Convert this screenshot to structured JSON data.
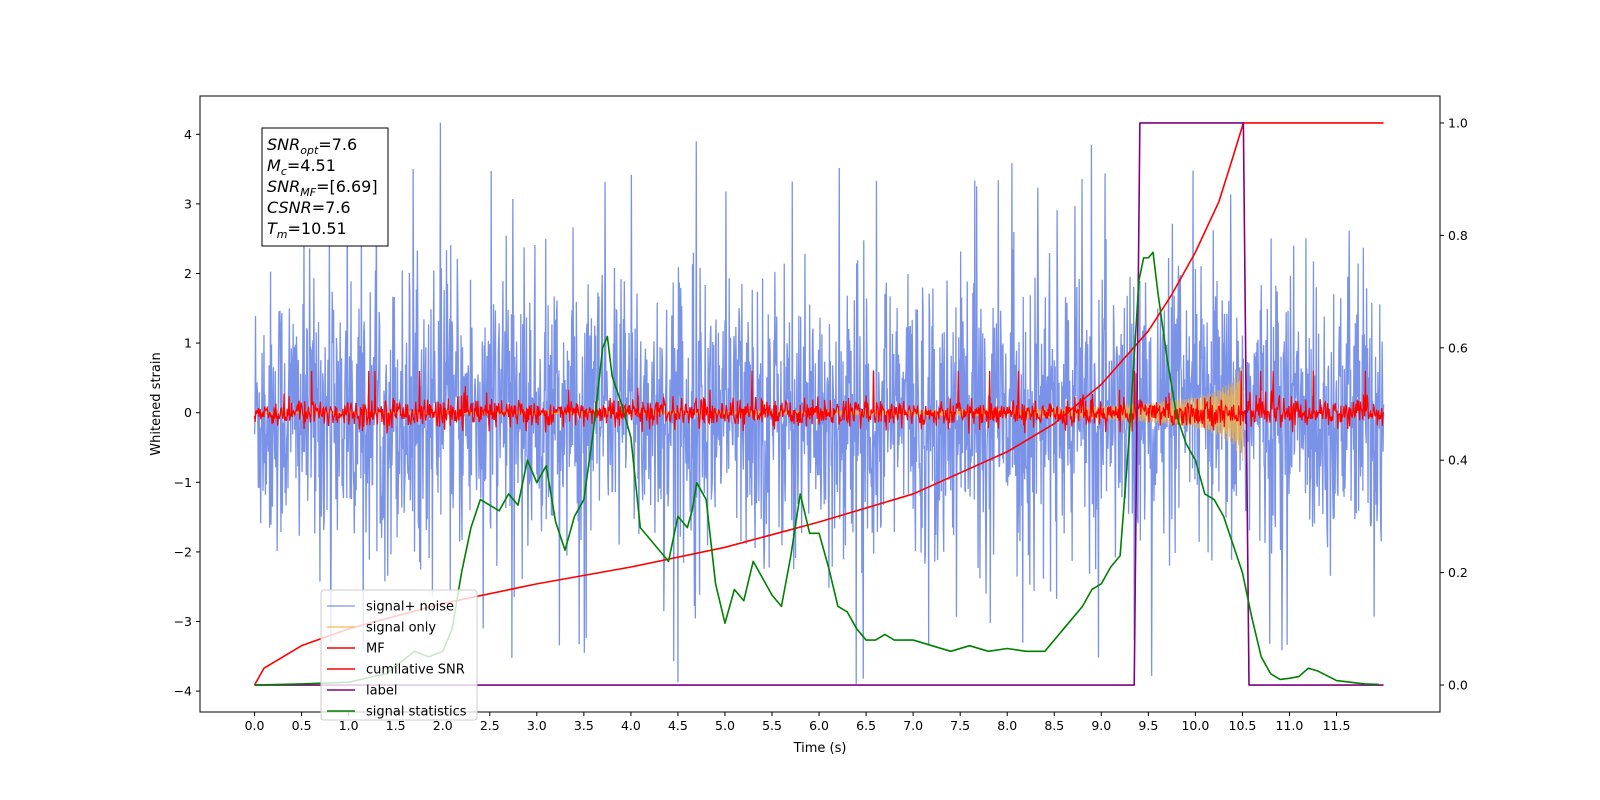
{
  "chart_data": {
    "type": "line",
    "title": "",
    "xlabel": "Time (s)",
    "ylabel": "Whitened strain",
    "y2label": "",
    "xlim": [
      -0.58,
      12.6
    ],
    "ylim": [
      -4.3,
      4.55
    ],
    "y2lim": [
      -0.048,
      1.048
    ],
    "x_ticks": [
      0.0,
      0.5,
      1.0,
      1.5,
      2.0,
      2.5,
      3.0,
      3.5,
      4.0,
      4.5,
      5.0,
      5.5,
      6.0,
      6.5,
      7.0,
      7.5,
      8.0,
      8.5,
      9.0,
      9.5,
      10.0,
      10.5,
      11.0,
      11.5
    ],
    "x_tick_labels": [
      "0.0",
      "0.5",
      "1.0",
      "1.5",
      "2.0",
      "2.5",
      "3.0",
      "3.5",
      "4.0",
      "4.5",
      "5.0",
      "5.5",
      "6.0",
      "6.5",
      "7.0",
      "7.5",
      "8.0",
      "8.5",
      "9.0",
      "9.5",
      "10.0",
      "10.5",
      "11.0",
      "11.5"
    ],
    "y_ticks": [
      -4,
      -3,
      -2,
      -1,
      0,
      1,
      2,
      3,
      4
    ],
    "y_tick_labels": [
      "−4",
      "−3",
      "−2",
      "−1",
      "0",
      "1",
      "2",
      "3",
      "4"
    ],
    "y2_ticks": [
      0.0,
      0.2,
      0.4,
      0.6,
      0.8,
      1.0
    ],
    "y2_tick_labels": [
      "0.0",
      "0.2",
      "0.4",
      "0.6",
      "0.8",
      "1.0"
    ],
    "grid": false,
    "legend_position": "lower-left",
    "series": [
      {
        "name": "signal+ noise",
        "color": "#6b87e6",
        "axis": "left",
        "style": "noise",
        "x_range": [
          0.0,
          12.0
        ],
        "mean": 0.0,
        "approx_band": [
          -2.3,
          2.3
        ],
        "approx_extremes": [
          -3.9,
          4.2
        ]
      },
      {
        "name": "signal only",
        "color": "#f5b342",
        "axis": "left",
        "style": "chirp",
        "x_range": [
          0.0,
          10.51
        ],
        "envelope": {
          "x": [
            0.0,
            6.0,
            8.0,
            9.0,
            9.5,
            10.0,
            10.2,
            10.4,
            10.51
          ],
          "y": [
            0.01,
            0.03,
            0.06,
            0.1,
            0.14,
            0.22,
            0.3,
            0.45,
            0.75
          ]
        }
      },
      {
        "name": "MF",
        "color": "#ff0000",
        "axis": "left",
        "style": "noise",
        "x_range": [
          0.0,
          12.0
        ],
        "mean": 0.0,
        "approx_band": [
          -0.2,
          0.2
        ],
        "approx_extremes": [
          -0.3,
          1.0
        ]
      },
      {
        "name": "cumilative SNR",
        "color": "#ff0000",
        "axis": "right",
        "x": [
          0.0,
          0.1,
          0.5,
          1.0,
          2.0,
          3.0,
          4.0,
          5.0,
          6.0,
          7.0,
          8.0,
          8.5,
          9.0,
          9.5,
          9.75,
          10.0,
          10.25,
          10.4,
          10.51,
          10.6,
          12.0
        ],
        "values": [
          0.0,
          0.03,
          0.07,
          0.1,
          0.145,
          0.18,
          0.21,
          0.245,
          0.29,
          0.34,
          0.415,
          0.465,
          0.535,
          0.63,
          0.695,
          0.77,
          0.86,
          0.94,
          1.0,
          1.0,
          1.0
        ]
      },
      {
        "name": "label",
        "color": "#800080",
        "axis": "right",
        "x": [
          0.0,
          9.35,
          9.41,
          10.51,
          10.57,
          12.0
        ],
        "values": [
          0.0,
          0.0,
          1.0,
          1.0,
          0.0,
          0.0
        ]
      },
      {
        "name": "signal statistics",
        "color": "#008000",
        "axis": "right",
        "x": [
          0.0,
          0.5,
          1.0,
          1.4,
          1.7,
          1.85,
          2.0,
          2.1,
          2.2,
          2.3,
          2.4,
          2.5,
          2.6,
          2.7,
          2.8,
          2.9,
          3.0,
          3.1,
          3.2,
          3.3,
          3.4,
          3.5,
          3.6,
          3.7,
          3.75,
          3.8,
          3.9,
          4.0,
          4.1,
          4.2,
          4.3,
          4.4,
          4.5,
          4.6,
          4.65,
          4.7,
          4.8,
          4.9,
          5.0,
          5.1,
          5.2,
          5.3,
          5.4,
          5.5,
          5.6,
          5.7,
          5.8,
          5.9,
          6.0,
          6.1,
          6.2,
          6.3,
          6.4,
          6.5,
          6.6,
          6.7,
          6.8,
          7.0,
          7.2,
          7.4,
          7.6,
          7.8,
          8.0,
          8.2,
          8.4,
          8.6,
          8.8,
          8.9,
          9.0,
          9.1,
          9.2,
          9.3,
          9.4,
          9.45,
          9.5,
          9.55,
          9.6,
          9.7,
          9.8,
          9.9,
          10.0,
          10.1,
          10.2,
          10.3,
          10.4,
          10.5,
          10.6,
          10.7,
          10.8,
          10.9,
          11.0,
          11.1,
          11.2,
          11.3,
          11.5,
          11.8,
          11.95
        ],
        "values": [
          0.0,
          0.002,
          0.005,
          0.02,
          0.06,
          0.05,
          0.06,
          0.1,
          0.2,
          0.28,
          0.33,
          0.32,
          0.31,
          0.34,
          0.32,
          0.4,
          0.36,
          0.39,
          0.29,
          0.24,
          0.3,
          0.33,
          0.45,
          0.6,
          0.62,
          0.55,
          0.5,
          0.44,
          0.28,
          0.26,
          0.24,
          0.22,
          0.3,
          0.28,
          0.31,
          0.36,
          0.33,
          0.18,
          0.11,
          0.17,
          0.15,
          0.22,
          0.19,
          0.16,
          0.14,
          0.23,
          0.34,
          0.27,
          0.27,
          0.21,
          0.14,
          0.13,
          0.1,
          0.08,
          0.08,
          0.09,
          0.08,
          0.08,
          0.07,
          0.06,
          0.07,
          0.06,
          0.065,
          0.06,
          0.06,
          0.1,
          0.14,
          0.17,
          0.18,
          0.21,
          0.23,
          0.45,
          0.72,
          0.76,
          0.76,
          0.77,
          0.7,
          0.58,
          0.48,
          0.43,
          0.4,
          0.34,
          0.33,
          0.3,
          0.25,
          0.2,
          0.12,
          0.05,
          0.02,
          0.01,
          0.012,
          0.015,
          0.03,
          0.025,
          0.008,
          0.002,
          0.001
        ]
      }
    ],
    "annotation_box": {
      "lines": [
        {
          "main": "SNR",
          "sub": "opt",
          "rest": "=7.6"
        },
        {
          "main": "M",
          "sub": "c",
          "rest": "=4.51"
        },
        {
          "main": "SNR",
          "sub": "MF",
          "rest": "=[6.69]"
        },
        {
          "main": "CSNR",
          "sub": "",
          "rest": "=7.6"
        },
        {
          "main": "T",
          "sub": "m",
          "rest": "=10.51"
        }
      ]
    }
  }
}
